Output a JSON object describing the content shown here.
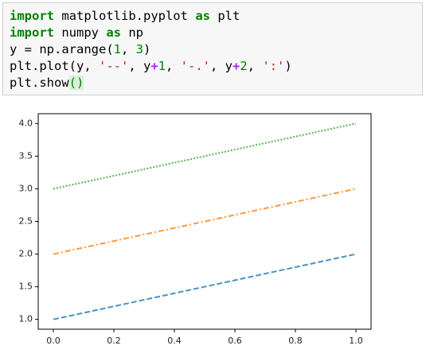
{
  "code": {
    "lines": [
      [
        "import",
        " matplotlib.pyplot ",
        "as",
        " plt"
      ],
      [
        "import",
        " numpy ",
        "as",
        " np"
      ],
      [
        "y = np.arange(",
        "1",
        ", ",
        "3",
        ")"
      ],
      [
        "plt.plot(y, ",
        "'--'",
        ", y",
        "+",
        "1",
        ", ",
        "'-.'",
        ", y",
        "+",
        "2",
        ", ",
        "':'",
        ")"
      ],
      [
        "plt.show",
        "()"
      ]
    ]
  },
  "chart_data": {
    "type": "line",
    "x": [
      0,
      1
    ],
    "series": [
      {
        "color": "#1f77b4",
        "linestyle": "--",
        "values": [
          1,
          2
        ]
      },
      {
        "color": "#ff7f0e",
        "linestyle": "-.",
        "values": [
          2,
          3
        ]
      },
      {
        "color": "#2ca02c",
        "linestyle": ":",
        "values": [
          3,
          4
        ]
      }
    ],
    "xlim": [
      -0.05,
      1.05
    ],
    "ylim": [
      0.85,
      4.15
    ],
    "xticks": [
      {
        "value": 0,
        "label": "0.0"
      },
      {
        "value": 0.2,
        "label": "0.2"
      },
      {
        "value": 0.4,
        "label": "0.4"
      },
      {
        "value": 0.6,
        "label": "0.6"
      },
      {
        "value": 0.8,
        "label": "0.8"
      },
      {
        "value": 1,
        "label": "1.0"
      }
    ],
    "yticks": [
      {
        "value": 1,
        "label": "1.0"
      },
      {
        "value": 1.5,
        "label": "1.5"
      },
      {
        "value": 2,
        "label": "2.0"
      },
      {
        "value": 2.5,
        "label": "2.5"
      },
      {
        "value": 3,
        "label": "3.0"
      },
      {
        "value": 3.5,
        "label": "3.5"
      },
      {
        "value": 4,
        "label": "4.0"
      }
    ],
    "grid": false
  }
}
